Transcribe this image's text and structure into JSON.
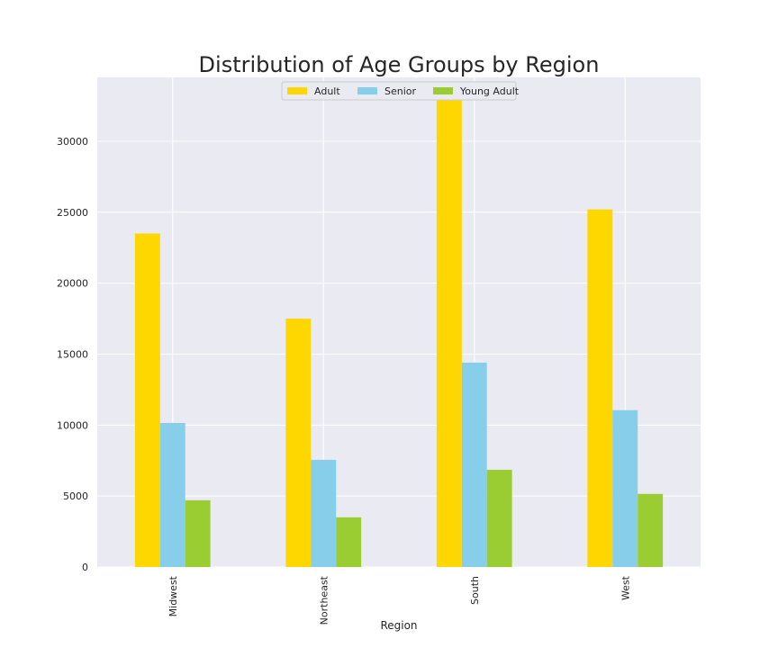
{
  "chart_data": {
    "type": "bar",
    "title": "Distribution of Age Groups by Region",
    "xlabel": "Region",
    "ylabel": "",
    "categories": [
      "Midwest",
      "Northeast",
      "South",
      "West"
    ],
    "series": [
      {
        "name": "Adult",
        "color": "#FFD700",
        "values": [
          23500,
          17500,
          33000,
          25200
        ]
      },
      {
        "name": "Senior",
        "color": "#87CEEB",
        "values": [
          10150,
          7550,
          14400,
          11050
        ]
      },
      {
        "name": "Young Adult",
        "color": "#9ACD32",
        "values": [
          4700,
          3500,
          6850,
          5150
        ]
      }
    ],
    "ylim": [
      0,
      34500
    ],
    "yticks": [
      0,
      5000,
      10000,
      15000,
      20000,
      25000,
      30000
    ],
    "ytick_labels": [
      "0",
      "5000",
      "10000",
      "15000",
      "20000",
      "25000",
      "30000"
    ],
    "grid": true,
    "legend_position": "upper center",
    "plot_background": "#EAEAF2"
  }
}
